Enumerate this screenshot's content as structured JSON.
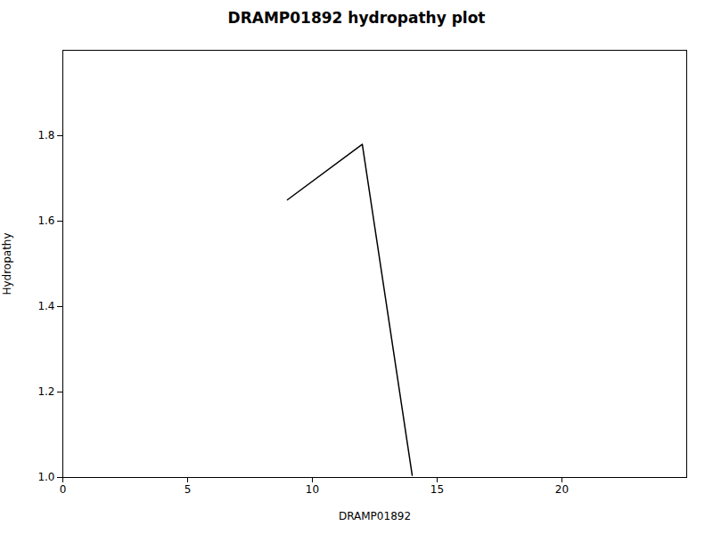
{
  "chart_data": {
    "type": "line",
    "title": "DRAMP01892 hydropathy plot",
    "x_label": "DRAMP01892",
    "y_label": "Hydropathy",
    "x": [
      9.0,
      12.0,
      12.0,
      14.0
    ],
    "values": [
      1.65,
      1.78,
      1.78,
      1.005
    ],
    "color": "#000000",
    "xlim": [
      0,
      25
    ],
    "ylim": [
      1.0,
      2.0
    ],
    "xticks": [
      0,
      5,
      10,
      15,
      20
    ],
    "yticks": [
      {
        "value": 1.0,
        "label": "1.0"
      },
      1.2,
      1.4,
      1.6,
      1.8
    ],
    "grid": false
  }
}
